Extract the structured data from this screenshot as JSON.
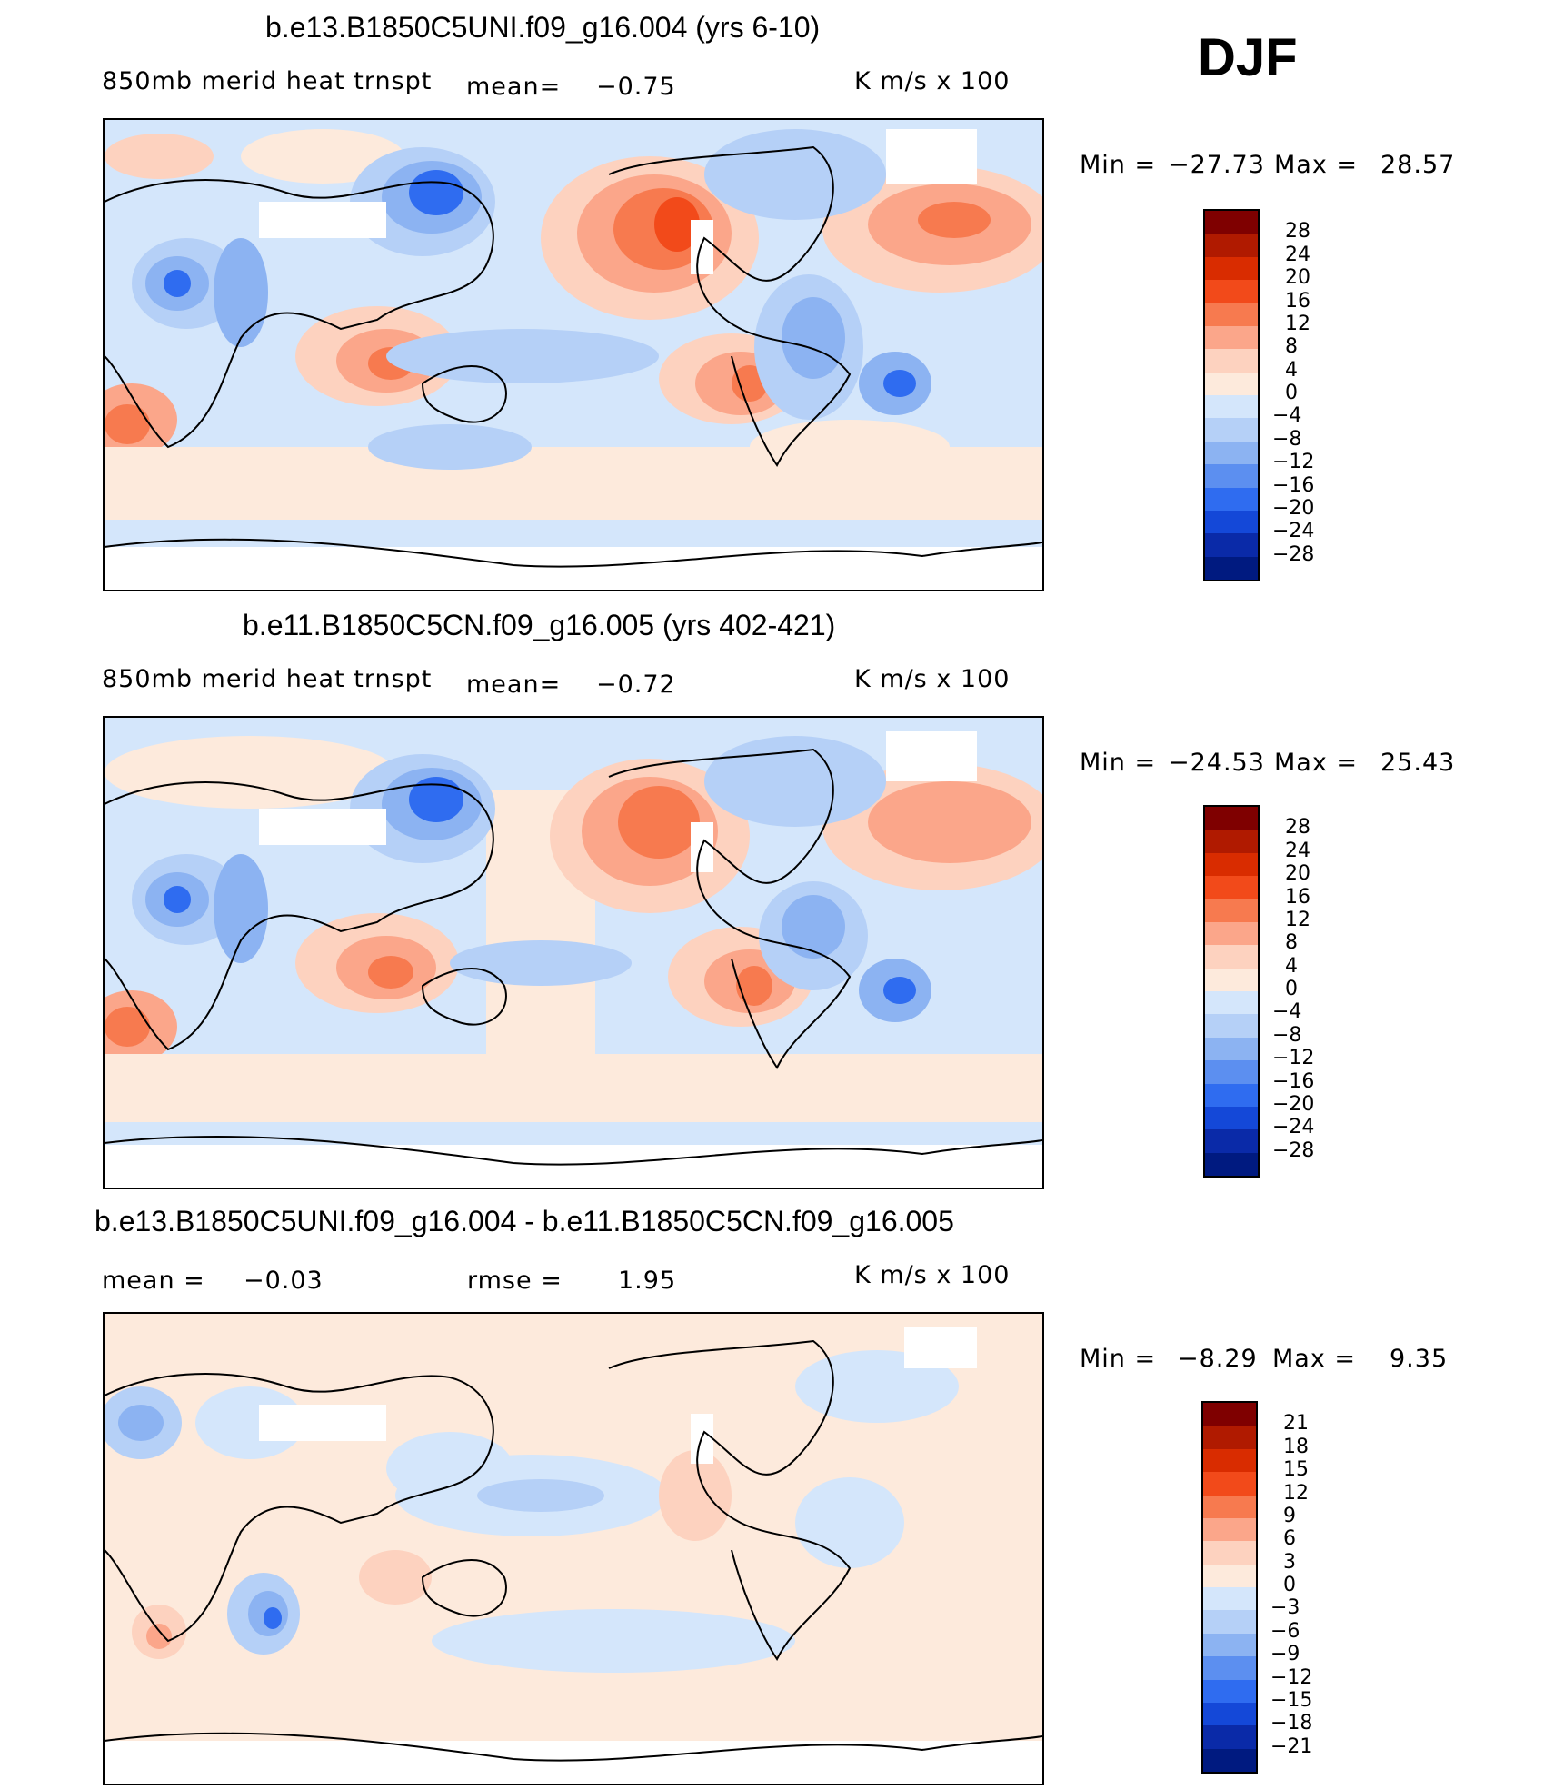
{
  "header": {
    "season": "DJF"
  },
  "chart_data": [
    {
      "type": "heatmap",
      "title": "b.e13.B1850C5UNI.f09_g16.004 (yrs 6-10)",
      "variable": "850mb  merid  heat  trnspt",
      "mean_label": "mean=",
      "mean_value": "−0.75",
      "units": "K  m/s  x  100",
      "min_label": "Min  =",
      "min_value": "−27.73",
      "max_label": "Max  =",
      "max_value": "28.57",
      "levels": [
        28,
        24,
        20,
        16,
        12,
        8,
        4,
        0,
        -4,
        -8,
        -12,
        -16,
        -20,
        -24,
        -28
      ],
      "level_labels": [
        "28",
        "24",
        "20",
        "16",
        "12",
        "8",
        "4",
        "0",
        "−4",
        "−8",
        "−12",
        "−16",
        "−20",
        "−24",
        "−28"
      ],
      "colors": [
        "#7f0000",
        "#b01a00",
        "#d92c00",
        "#f24a1a",
        "#f77a4f",
        "#fba68a",
        "#fdd2bf",
        "#fdeadc",
        "#d4e6fb",
        "#b5d0f7",
        "#8cb3f2",
        "#5c8ff0",
        "#2f6cf0",
        "#1448d8",
        "#0a2aa8",
        "#001a80"
      ]
    },
    {
      "type": "heatmap",
      "title": "b.e11.B1850C5CN.f09_g16.005 (yrs 402-421)",
      "variable": "850mb  merid  heat  trnspt",
      "mean_label": "mean=",
      "mean_value": "−0.72",
      "units": "K  m/s  x  100",
      "min_label": "Min  =",
      "min_value": "−24.53",
      "max_label": "Max  =",
      "max_value": "25.43",
      "levels": [
        28,
        24,
        20,
        16,
        12,
        8,
        4,
        0,
        -4,
        -8,
        -12,
        -16,
        -20,
        -24,
        -28
      ],
      "level_labels": [
        "28",
        "24",
        "20",
        "16",
        "12",
        "8",
        "4",
        "0",
        "−4",
        "−8",
        "−12",
        "−16",
        "−20",
        "−24",
        "−28"
      ],
      "colors": [
        "#7f0000",
        "#b01a00",
        "#d92c00",
        "#f24a1a",
        "#f77a4f",
        "#fba68a",
        "#fdd2bf",
        "#fdeadc",
        "#d4e6fb",
        "#b5d0f7",
        "#8cb3f2",
        "#5c8ff0",
        "#2f6cf0",
        "#1448d8",
        "#0a2aa8",
        "#001a80"
      ]
    },
    {
      "type": "heatmap",
      "title": "b.e13.B1850C5UNI.f09_g16.004 - b.e11.B1850C5CN.f09_g16.005",
      "mean_label": "mean  =",
      "mean_value": "−0.03",
      "rmse_label": "rmse  =",
      "rmse_value": "1.95",
      "units": "K  m/s  x  100",
      "min_label": "Min  =",
      "min_value": "−8.29",
      "max_label": "Max  =",
      "max_value": "9.35",
      "levels": [
        21,
        18,
        15,
        12,
        9,
        6,
        3,
        0,
        -3,
        -6,
        -9,
        -12,
        -15,
        -18,
        -21
      ],
      "level_labels": [
        "21",
        "18",
        "15",
        "12",
        "9",
        "6",
        "3",
        "0",
        "−3",
        "−6",
        "−9",
        "−12",
        "−15",
        "−18",
        "−21"
      ],
      "colors": [
        "#7f0000",
        "#b01a00",
        "#d92c00",
        "#f24a1a",
        "#f77a4f",
        "#fba68a",
        "#fdd2bf",
        "#fdeadc",
        "#d4e6fb",
        "#b5d0f7",
        "#8cb3f2",
        "#5c8ff0",
        "#2f6cf0",
        "#1448d8",
        "#0a2aa8",
        "#001a80"
      ]
    }
  ]
}
